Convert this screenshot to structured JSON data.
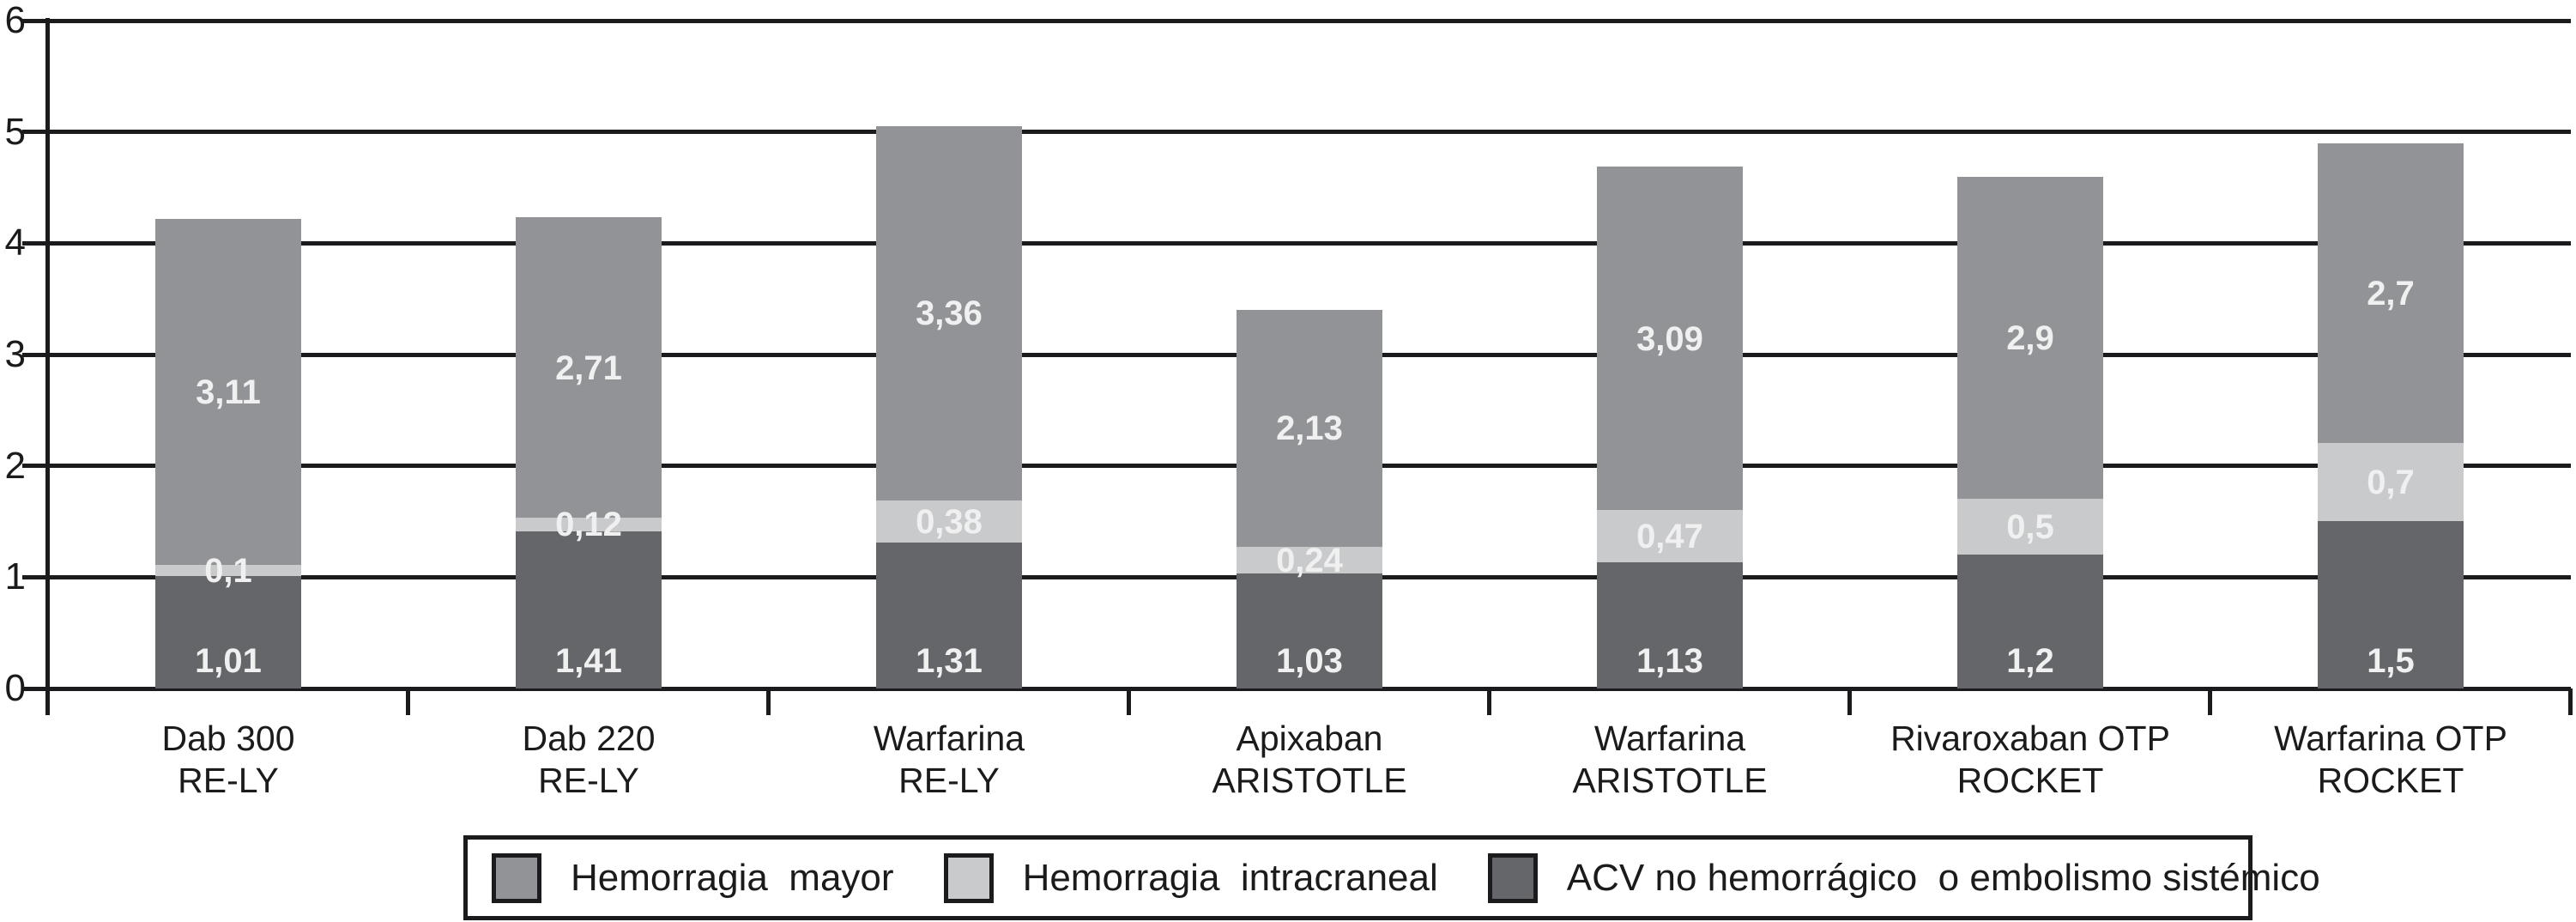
{
  "chart_data": {
    "type": "bar",
    "stacked": true,
    "title": "",
    "xlabel": "",
    "ylabel": "",
    "categories": [
      "Dab 300\nRE-LY",
      "Dab 220\nRE-LY",
      "Warfarina\nRE-LY",
      "Apixaban\nARISTOTLE",
      "Warfarina\nARISTOTLE",
      "Rivaroxaban OTP\nROCKET",
      "Warfarina OTP\nROCKET"
    ],
    "series": [
      {
        "name": "ACV no hemorrágico  o embolismo sistémico",
        "color_key": "dark",
        "values": [
          1.01,
          1.41,
          1.31,
          1.03,
          1.13,
          1.2,
          1.5
        ],
        "labels": [
          "1,01",
          "1,41",
          "1,31",
          "1,03",
          "1,13",
          "1,2",
          "1,5"
        ]
      },
      {
        "name": "Hemorragia  intracraneal",
        "color_key": "light",
        "values": [
          0.1,
          0.12,
          0.38,
          0.24,
          0.47,
          0.5,
          0.7
        ],
        "labels": [
          "0,1",
          "0,12",
          "0,38",
          "0,24",
          "0,47",
          "0,5",
          "0,7"
        ]
      },
      {
        "name": "Hemorragia  mayor",
        "color_key": "medium",
        "values": [
          3.11,
          2.71,
          3.36,
          2.13,
          3.09,
          2.9,
          2.7
        ],
        "labels": [
          "3,11",
          "2,71",
          "3,36",
          "2,13",
          "3,09",
          "2,9",
          "2,7"
        ]
      }
    ],
    "y_axis": {
      "min": 0,
      "max": 6,
      "tick_labels": [
        "0",
        "1",
        "2",
        "3",
        "4",
        "5",
        "6"
      ]
    },
    "grid": true,
    "legend_position": "bottom",
    "legend": [
      {
        "label": "Hemorragia  mayor",
        "color_key": "medium"
      },
      {
        "label": "Hemorragia  intracraneal",
        "color_key": "light"
      },
      {
        "label": "ACV no hemorrágico  o embolismo sistémico",
        "color_key": "dark"
      }
    ],
    "colors": {
      "dark": "#64666a",
      "light": "#c9cacc",
      "medium": "#919396",
      "axis": "#1b1b1d",
      "value_text": "#f0f0f1"
    }
  }
}
